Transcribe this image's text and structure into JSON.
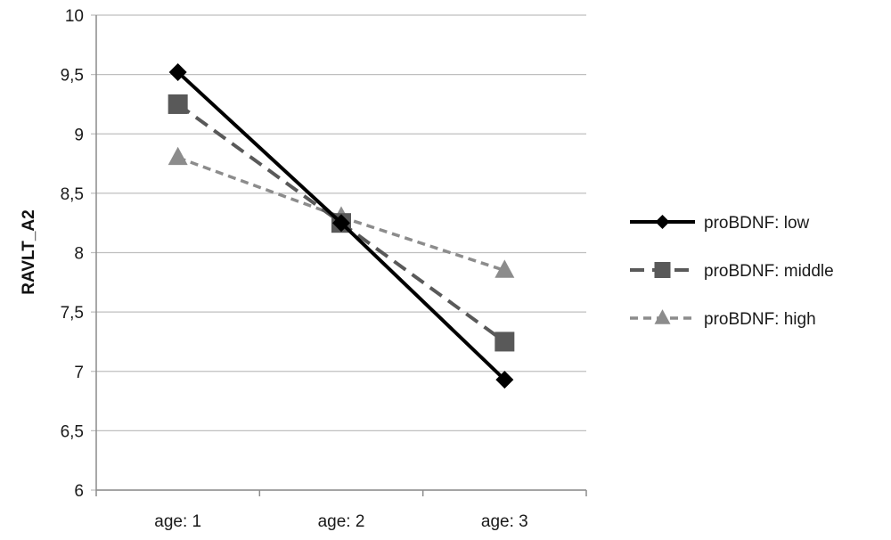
{
  "chart_data": {
    "type": "line",
    "ylabel": "RAVLT_A2",
    "xlabel": "",
    "title": "",
    "categories": [
      "age: 1",
      "age: 2",
      "age: 3"
    ],
    "ylim": [
      6,
      10
    ],
    "yticks": [
      6,
      6.5,
      7,
      7.5,
      8,
      8.5,
      9,
      9.5,
      10
    ],
    "ytick_labels": [
      "6",
      "6,5",
      "7",
      "7,5",
      "8",
      "8,5",
      "9",
      "9,5",
      "10"
    ],
    "grid": "horizontal",
    "legend_position": "right",
    "series": [
      {
        "name": "proBDNF: low",
        "values": [
          9.52,
          8.25,
          6.93
        ],
        "color": "#000000",
        "line": "solid",
        "marker": "diamond"
      },
      {
        "name": "proBDNF: middle",
        "values": [
          9.25,
          8.25,
          7.25
        ],
        "color": "#595959",
        "line": "dashed",
        "marker": "square"
      },
      {
        "name": "proBDNF: high",
        "values": [
          8.8,
          8.3,
          7.85
        ],
        "color": "#8c8c8c",
        "line": "dotted",
        "marker": "triangle"
      }
    ]
  }
}
